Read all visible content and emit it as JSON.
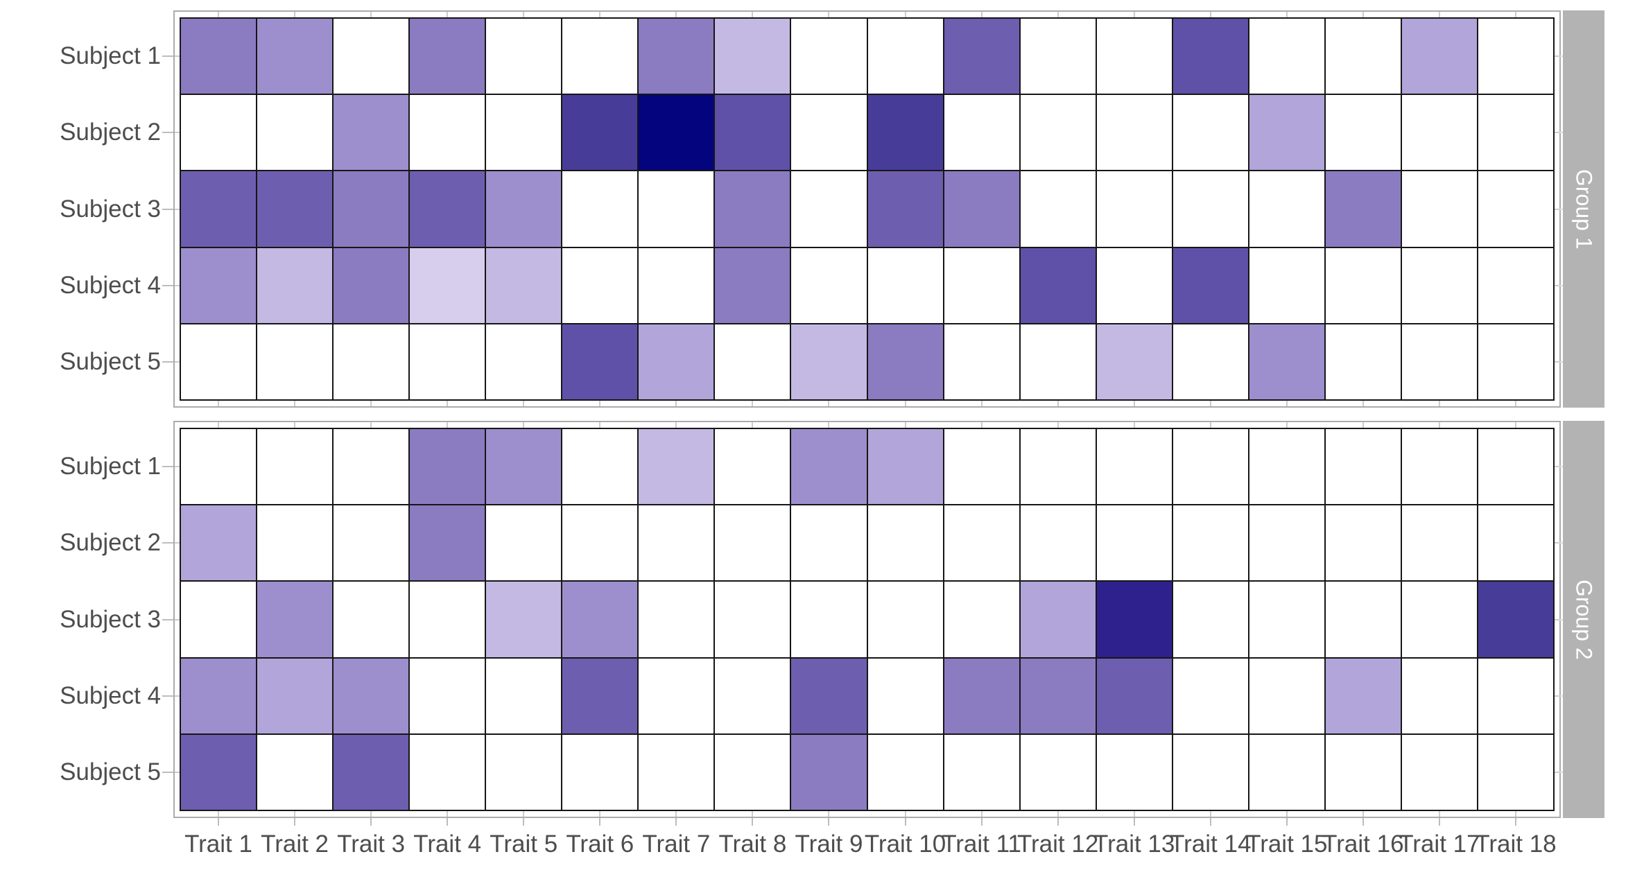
{
  "chart_data": {
    "type": "heatmap",
    "faceted": true,
    "title": "",
    "xlabel": "",
    "ylabel": "",
    "legend": "none",
    "grid_lines": "black cell borders on all cells",
    "x_categories": [
      "Trait 1",
      "Trait 2",
      "Trait 3",
      "Trait 4",
      "Trait 5",
      "Trait 6",
      "Trait 7",
      "Trait 8",
      "Trait 9",
      "Trait 10",
      "Trait 11",
      "Trait 12",
      "Trait 13",
      "Trait 14",
      "Trait 15",
      "Trait 16",
      "Trait 17",
      "Trait 18"
    ],
    "y_categories": [
      "Subject 1",
      "Subject 2",
      "Subject 3",
      "Subject 4",
      "Subject 5"
    ],
    "value_range": [
      0,
      10
    ],
    "value_palette": [
      "#FFFFFF",
      "#D7CDEC",
      "#C4B9E3",
      "#B2A5DA",
      "#9D8FCD",
      "#8B7BC1",
      "#6E5EAF",
      "#5F51A7",
      "#473C98",
      "#2F218D",
      "#04047E"
    ],
    "facets": [
      {
        "label": "Group 1",
        "strip_side": "right",
        "values": [
          [
            5,
            4,
            0,
            5,
            0,
            0,
            5,
            2,
            0,
            0,
            6,
            0,
            0,
            7,
            0,
            0,
            3,
            0
          ],
          [
            0,
            0,
            4,
            0,
            0,
            8,
            10,
            7,
            0,
            8,
            0,
            0,
            0,
            0,
            3,
            0,
            0,
            0
          ],
          [
            6,
            6,
            5,
            6,
            4,
            0,
            0,
            5,
            0,
            6,
            5,
            0,
            0,
            0,
            0,
            5,
            0,
            0
          ],
          [
            4,
            2,
            5,
            1,
            2,
            0,
            0,
            5,
            0,
            0,
            0,
            7,
            0,
            7,
            0,
            0,
            0,
            0
          ],
          [
            0,
            0,
            0,
            0,
            0,
            7,
            3,
            0,
            2,
            5,
            0,
            0,
            2,
            0,
            4,
            0,
            0,
            0
          ]
        ]
      },
      {
        "label": "Group 2",
        "strip_side": "right",
        "values": [
          [
            0,
            0,
            0,
            5,
            4,
            0,
            2,
            0,
            4,
            3,
            0,
            0,
            0,
            0,
            0,
            0,
            0,
            0
          ],
          [
            3,
            0,
            0,
            5,
            0,
            0,
            0,
            0,
            0,
            0,
            0,
            0,
            0,
            0,
            0,
            0,
            0,
            0
          ],
          [
            0,
            4,
            0,
            0,
            2,
            4,
            0,
            0,
            0,
            0,
            0,
            3,
            9,
            0,
            0,
            0,
            0,
            8
          ],
          [
            4,
            3,
            4,
            0,
            0,
            6,
            0,
            0,
            6,
            0,
            5,
            5,
            6,
            0,
            0,
            3,
            0,
            0
          ],
          [
            6,
            0,
            6,
            0,
            0,
            0,
            0,
            0,
            5,
            0,
            0,
            0,
            0,
            0,
            0,
            0,
            0,
            0
          ]
        ]
      }
    ],
    "styles": {
      "cell_border_color": "#161616",
      "panel_frame_color": "#ABABAB",
      "strip_bg_color": "#B3B3B3",
      "strip_text_color": "#FFFFFF",
      "axis_text_color": "#4D4D4D",
      "inner_tick_color": "#CCCCCC",
      "outer_tick_color": "#BDBDBD"
    }
  }
}
